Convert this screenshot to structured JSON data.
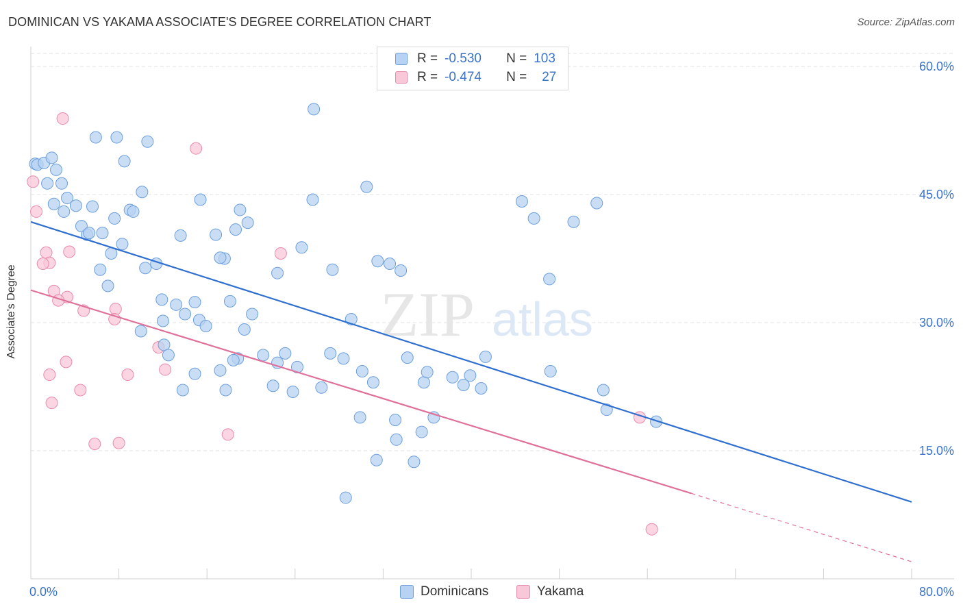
{
  "title": "DOMINICAN VS YAKAMA ASSOCIATE'S DEGREE CORRELATION CHART",
  "source": "Source: ZipAtlas.com",
  "watermark": {
    "zip": "ZIP",
    "atlas": "atlas"
  },
  "legend_top": {
    "rows": [
      {
        "r_label": "R =",
        "r_value": "-0.530",
        "n_label": "N =",
        "n_value": "103"
      },
      {
        "r_label": "R =",
        "r_value": "-0.474",
        "n_label": "N =",
        "n_value": "27"
      }
    ]
  },
  "legend_bottom": {
    "items": [
      "Dominicans",
      "Yakama"
    ]
  },
  "colors": {
    "blue_fill": "#b7d2f2",
    "blue_stroke": "#6c9fdc",
    "blue_line": "#2f6fd0",
    "pink_fill": "#f9c8d8",
    "pink_stroke": "#e88aa9",
    "pink_line": "#e0709a",
    "grid": "#e2e2e2",
    "tick_text": "#3a73c9"
  },
  "chart_data": {
    "type": "scatter",
    "title": "DOMINICAN VS YAKAMA ASSOCIATE'S DEGREE CORRELATION CHART",
    "xlabel": "",
    "ylabel": "Associate's Degree",
    "xlim": [
      0,
      80
    ],
    "ylim": [
      0,
      60
    ],
    "x_tick_labels": [
      "0.0%",
      "80.0%"
    ],
    "y_ticks": [
      15,
      30,
      45,
      60
    ],
    "y_tick_labels": [
      "15.0%",
      "30.0%",
      "45.0%",
      "60.0%"
    ],
    "grid": true,
    "series": [
      {
        "name": "Dominicans",
        "trend": {
          "x": [
            0,
            80
          ],
          "y": [
            41.8,
            9.0
          ]
        },
        "points": [
          [
            0.4,
            48.6
          ],
          [
            0.6,
            48.5
          ],
          [
            1.2,
            48.7
          ],
          [
            1.9,
            49.3
          ],
          [
            2.3,
            47.9
          ],
          [
            1.5,
            46.3
          ],
          [
            2.8,
            46.3
          ],
          [
            3.3,
            44.6
          ],
          [
            4.1,
            43.7
          ],
          [
            2.1,
            43.9
          ],
          [
            3.0,
            43.0
          ],
          [
            5.6,
            43.6
          ],
          [
            5.9,
            51.7
          ],
          [
            7.8,
            51.7
          ],
          [
            10.6,
            51.2
          ],
          [
            8.5,
            48.9
          ],
          [
            10.1,
            45.3
          ],
          [
            7.6,
            42.2
          ],
          [
            9.0,
            43.2
          ],
          [
            9.3,
            43.0
          ],
          [
            6.5,
            40.5
          ],
          [
            8.3,
            39.2
          ],
          [
            5.1,
            40.3
          ],
          [
            4.6,
            41.3
          ],
          [
            5.3,
            40.5
          ],
          [
            7.3,
            38.1
          ],
          [
            6.3,
            36.2
          ],
          [
            7.0,
            34.3
          ],
          [
            10.4,
            36.4
          ],
          [
            11.4,
            36.9
          ],
          [
            13.6,
            40.2
          ],
          [
            15.4,
            44.4
          ],
          [
            16.8,
            40.3
          ],
          [
            18.6,
            40.9
          ],
          [
            19.0,
            43.2
          ],
          [
            19.7,
            41.7
          ],
          [
            17.6,
            37.5
          ],
          [
            17.2,
            37.6
          ],
          [
            11.9,
            32.7
          ],
          [
            13.2,
            32.1
          ],
          [
            14.0,
            31.0
          ],
          [
            14.9,
            32.4
          ],
          [
            12.0,
            30.2
          ],
          [
            10.0,
            29.0
          ],
          [
            15.3,
            30.3
          ],
          [
            15.9,
            29.6
          ],
          [
            18.1,
            32.5
          ],
          [
            19.4,
            29.2
          ],
          [
            20.1,
            31.0
          ],
          [
            22.4,
            35.8
          ],
          [
            24.6,
            38.8
          ],
          [
            25.6,
            44.4
          ],
          [
            27.4,
            36.2
          ],
          [
            25.7,
            55.0
          ],
          [
            30.5,
            45.9
          ],
          [
            31.5,
            37.2
          ],
          [
            32.6,
            36.9
          ],
          [
            33.6,
            36.1
          ],
          [
            29.1,
            30.4
          ],
          [
            21.1,
            26.2
          ],
          [
            12.1,
            27.4
          ],
          [
            12.5,
            26.2
          ],
          [
            22.4,
            25.3
          ],
          [
            23.1,
            26.4
          ],
          [
            24.2,
            24.8
          ],
          [
            27.2,
            26.4
          ],
          [
            28.4,
            25.8
          ],
          [
            30.1,
            24.3
          ],
          [
            31.1,
            23.0
          ],
          [
            34.2,
            25.9
          ],
          [
            35.7,
            23.0
          ],
          [
            36.0,
            24.2
          ],
          [
            38.3,
            23.6
          ],
          [
            39.3,
            22.7
          ],
          [
            39.9,
            23.8
          ],
          [
            40.9,
            22.3
          ],
          [
            17.2,
            24.4
          ],
          [
            18.8,
            25.8
          ],
          [
            13.8,
            22.1
          ],
          [
            17.7,
            22.1
          ],
          [
            22.0,
            22.6
          ],
          [
            23.8,
            21.9
          ],
          [
            29.9,
            18.9
          ],
          [
            33.1,
            18.6
          ],
          [
            33.2,
            16.3
          ],
          [
            35.5,
            17.2
          ],
          [
            36.6,
            18.9
          ],
          [
            28.6,
            9.5
          ],
          [
            47.1,
            35.1
          ],
          [
            45.7,
            42.2
          ],
          [
            44.6,
            44.2
          ],
          [
            49.3,
            41.8
          ],
          [
            51.4,
            44.0
          ],
          [
            41.3,
            26.0
          ],
          [
            47.2,
            24.3
          ],
          [
            52.0,
            22.1
          ],
          [
            52.3,
            19.8
          ],
          [
            56.8,
            18.4
          ],
          [
            26.4,
            22.4
          ],
          [
            31.4,
            13.9
          ],
          [
            34.8,
            13.7
          ],
          [
            18.4,
            25.6
          ],
          [
            14.9,
            24.0
          ]
        ]
      },
      {
        "name": "Yakama",
        "trend": {
          "x": [
            0,
            60
          ],
          "y": [
            33.8,
            10.0
          ],
          "dash_to": [
            80,
            2.0
          ]
        },
        "points": [
          [
            2.9,
            53.9
          ],
          [
            15.0,
            50.4
          ],
          [
            0.2,
            46.5
          ],
          [
            0.5,
            43.0
          ],
          [
            1.4,
            38.2
          ],
          [
            1.7,
            37.0
          ],
          [
            1.1,
            36.9
          ],
          [
            3.5,
            38.3
          ],
          [
            22.7,
            38.1
          ],
          [
            2.1,
            33.7
          ],
          [
            3.3,
            33.0
          ],
          [
            2.5,
            32.6
          ],
          [
            7.7,
            31.6
          ],
          [
            4.8,
            31.4
          ],
          [
            7.6,
            30.4
          ],
          [
            11.6,
            27.1
          ],
          [
            3.2,
            25.4
          ],
          [
            1.7,
            23.9
          ],
          [
            8.8,
            23.9
          ],
          [
            12.2,
            24.5
          ],
          [
            4.5,
            22.1
          ],
          [
            1.9,
            20.6
          ],
          [
            5.8,
            15.8
          ],
          [
            8.0,
            15.9
          ],
          [
            17.9,
            16.9
          ],
          [
            55.3,
            18.9
          ],
          [
            56.4,
            5.8
          ]
        ]
      }
    ]
  }
}
